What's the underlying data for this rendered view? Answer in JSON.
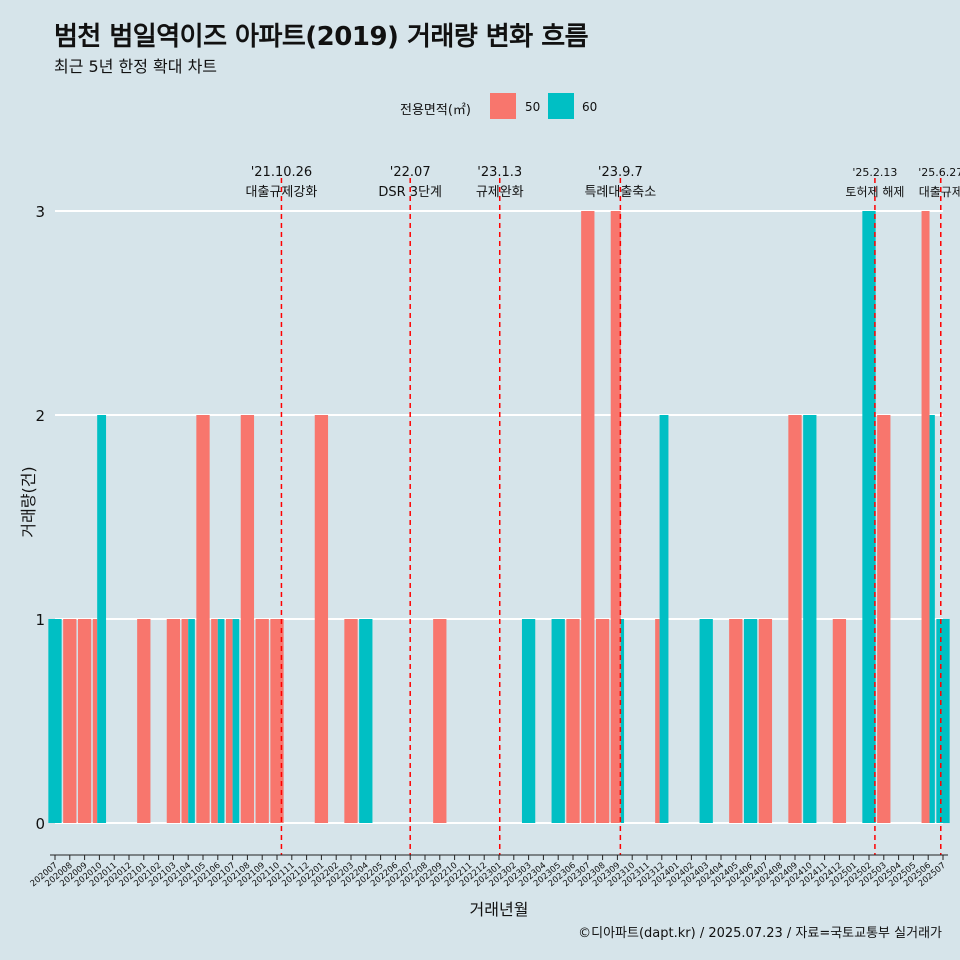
{
  "title": "범천 범일역이즈 아파트(2019) 거래량 변화 흐름",
  "subtitle": "최근 5년 한정 확대 차트",
  "caption": "©디아파트(dapt.kr) / 2025.07.23 / 자료=국토교통부 실거래가",
  "legend": {
    "title": "전용면적(㎡)",
    "items": [
      {
        "label": "50",
        "color": "#f8766d"
      },
      {
        "label": "60",
        "color": "#00bfc4"
      }
    ]
  },
  "chart_data": {
    "type": "bar",
    "xlabel": "거래년월",
    "ylabel": "거래량(건)",
    "ylim": [
      0,
      3
    ],
    "yticks": [
      0,
      1,
      2,
      3
    ],
    "categories": [
      "202007",
      "202008",
      "202009",
      "202010",
      "202011",
      "202012",
      "202101",
      "202102",
      "202103",
      "202104",
      "202105",
      "202106",
      "202107",
      "202108",
      "202109",
      "202110",
      "202111",
      "202112",
      "202201",
      "202202",
      "202203",
      "202204",
      "202205",
      "202206",
      "202207",
      "202208",
      "202209",
      "202210",
      "202211",
      "202212",
      "202301",
      "202302",
      "202303",
      "202304",
      "202305",
      "202306",
      "202307",
      "202308",
      "202309",
      "202310",
      "202311",
      "202312",
      "202401",
      "202402",
      "202403",
      "202404",
      "202405",
      "202406",
      "202407",
      "202408",
      "202409",
      "202410",
      "202411",
      "202412",
      "202501",
      "202502",
      "202503",
      "202504",
      "202505",
      "202506",
      "202507"
    ],
    "series": [
      {
        "name": "50",
        "color": "#f8766d",
        "values": [
          0,
          1,
          1,
          1,
          0,
          0,
          1,
          0,
          1,
          1,
          2,
          1,
          1,
          2,
          1,
          1,
          0,
          0,
          2,
          0,
          1,
          0,
          0,
          0,
          0,
          0,
          1,
          0,
          0,
          0,
          0,
          0,
          0,
          0,
          0,
          1,
          3,
          1,
          3,
          0,
          0,
          1,
          0,
          0,
          0,
          0,
          1,
          0,
          1,
          0,
          2,
          0,
          0,
          1,
          0,
          0,
          2,
          0,
          0,
          3,
          0
        ]
      },
      {
        "name": "60",
        "color": "#00bfc4",
        "values": [
          1,
          0,
          0,
          2,
          0,
          0,
          0,
          0,
          0,
          1,
          0,
          1,
          1,
          0,
          0,
          0,
          0,
          0,
          0,
          0,
          0,
          1,
          0,
          0,
          0,
          0,
          0,
          0,
          0,
          0,
          0,
          0,
          1,
          0,
          1,
          0,
          0,
          0,
          1,
          0,
          0,
          2,
          0,
          0,
          1,
          0,
          0,
          1,
          0,
          0,
          0,
          2,
          0,
          0,
          0,
          3,
          0,
          0,
          0,
          2,
          1
        ]
      }
    ],
    "events": [
      {
        "date": "'21.10.26",
        "label": "대출규제강화",
        "category": "202110",
        "offset": 0.3
      },
      {
        "date": "'22.07",
        "label": "DSR 3단계",
        "category": "202207",
        "offset": 0
      },
      {
        "date": "'23.1.3",
        "label": "규제완화",
        "category": "202301",
        "offset": 0.05
      },
      {
        "date": "'23.9.7",
        "label": "특례대출축소",
        "category": "202309",
        "offset": 0.2
      },
      {
        "date": "'25.2.13",
        "label": "토허제 해제",
        "category": "202502",
        "offset": 0.4
      },
      {
        "date": "'25.6.27",
        "label": "대출규제",
        "category": "202506",
        "offset": 0.85
      }
    ]
  }
}
